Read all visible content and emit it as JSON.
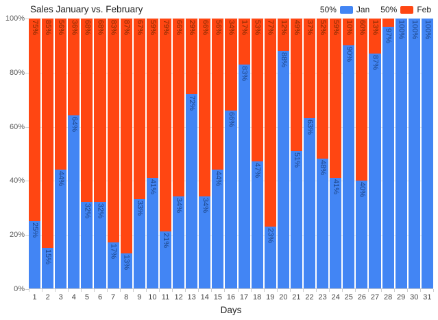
{
  "chart_data": {
    "type": "bar",
    "stacked": "percent",
    "title": "Sales January vs. February",
    "xlabel": "Days",
    "ylabel": "",
    "ylim": [
      0,
      100
    ],
    "grid": true,
    "legend_position": "top-right",
    "y_ticks": [
      "0%",
      "20%",
      "40%",
      "60%",
      "80%",
      "100%"
    ],
    "legend": [
      {
        "prefix": "50%",
        "label": "Jan",
        "color": "#4285f4"
      },
      {
        "prefix": "50%",
        "label": "Feb",
        "color": "#ff4612"
      }
    ],
    "categories": [
      1,
      2,
      3,
      4,
      5,
      6,
      7,
      8,
      9,
      10,
      11,
      12,
      13,
      14,
      15,
      16,
      17,
      18,
      19,
      20,
      21,
      22,
      23,
      24,
      25,
      26,
      27,
      28,
      29,
      30,
      31
    ],
    "series": [
      {
        "name": "Jan",
        "color": "#4285f4",
        "label_color": "#1c4587",
        "values": [
          25,
          15,
          44,
          64,
          32,
          32,
          17,
          13,
          33,
          41,
          21,
          34,
          72,
          34,
          44,
          66,
          83,
          47,
          23,
          88,
          51,
          63,
          48,
          41,
          90,
          40,
          87,
          97,
          100,
          100,
          100
        ],
        "labels": [
          "25%",
          "15%",
          "44%",
          "64%",
          "32%",
          "32%",
          "17%",
          "13%",
          "33%",
          "41%",
          "21%",
          "34%",
          "72%",
          "34%",
          "44%",
          "66%",
          "83%",
          "47%",
          "23%",
          "88%",
          "51%",
          "63%",
          "48%",
          "41%",
          "90%",
          "40%",
          "87%",
          "97%",
          "100%",
          "100%",
          "100%"
        ]
      },
      {
        "name": "Feb",
        "color": "#ff4612",
        "label_color": "#7f2a00",
        "values": [
          75,
          85,
          56,
          36,
          68,
          68,
          83,
          87,
          67,
          59,
          79,
          66,
          29,
          66,
          56,
          34,
          17,
          53,
          77,
          12,
          49,
          37,
          52,
          59,
          10,
          60,
          13,
          3,
          0,
          0,
          0
        ],
        "labels": [
          "75%",
          "85%",
          "56%",
          "36%",
          "68%",
          "68%",
          "83%",
          "87%",
          "67%",
          "59%",
          "79%",
          "66%",
          "29%",
          "66%",
          "56%",
          "34%",
          "17%",
          "53%",
          "77%",
          "12%",
          "49%",
          "37%",
          "52%",
          "59%",
          "10%",
          "60%",
          "13%",
          null,
          null,
          null,
          null
        ]
      }
    ]
  }
}
